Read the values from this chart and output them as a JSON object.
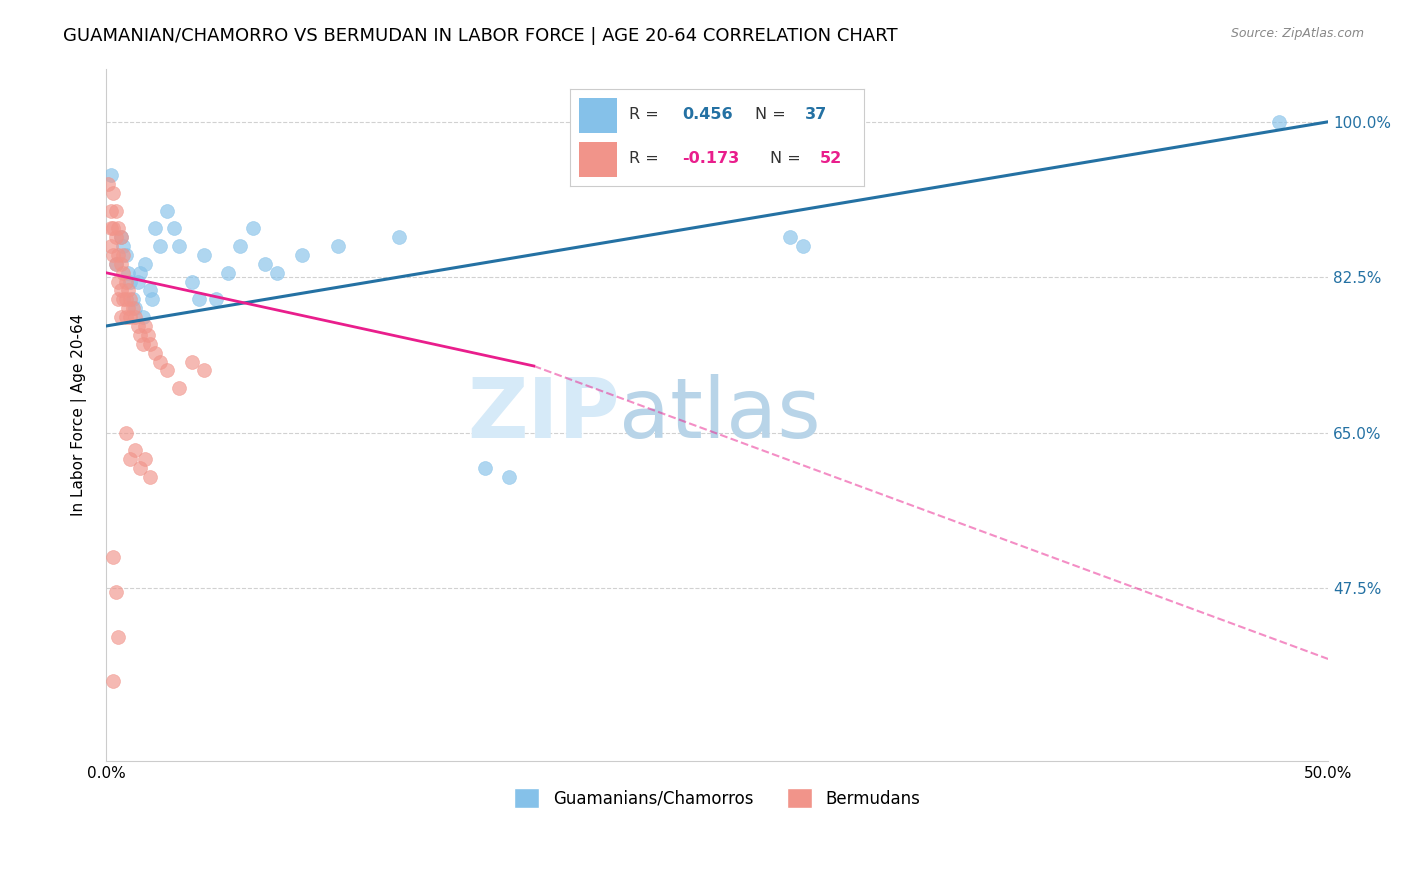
{
  "title": "GUAMANIAN/CHAMORRO VS BERMUDAN IN LABOR FORCE | AGE 20-64 CORRELATION CHART",
  "source": "Source: ZipAtlas.com",
  "ylabel": "In Labor Force | Age 20-64",
  "xlim": [
    0.0,
    0.5
  ],
  "ylim": [
    0.28,
    1.06
  ],
  "xticks": [
    0.0,
    0.1,
    0.2,
    0.3,
    0.4,
    0.5
  ],
  "xticklabels": [
    "0.0%",
    "",
    "",
    "",
    "",
    "50.0%"
  ],
  "yticks_right": [
    1.0,
    0.825,
    0.65,
    0.475
  ],
  "yticks_right_labels": [
    "100.0%",
    "82.5%",
    "65.0%",
    "47.5%"
  ],
  "blue_color": "#85c1e9",
  "pink_color": "#f1948a",
  "blue_line_color": "#2471a3",
  "pink_line_color": "#e91e8c",
  "watermark_zip": "ZIP",
  "watermark_atlas": "atlas",
  "grid_color": "#cccccc",
  "bg_color": "#ffffff",
  "title_fontsize": 13,
  "axis_label_fontsize": 11,
  "tick_fontsize": 11,
  "watermark_color": "#d6eaf8",
  "blue_scatter_x": [
    0.002,
    0.004,
    0.006,
    0.007,
    0.008,
    0.009,
    0.01,
    0.011,
    0.012,
    0.013,
    0.014,
    0.015,
    0.016,
    0.018,
    0.019,
    0.02,
    0.022,
    0.025,
    0.028,
    0.03,
    0.035,
    0.038,
    0.04,
    0.045,
    0.05,
    0.055,
    0.06,
    0.065,
    0.07,
    0.08,
    0.095,
    0.12,
    0.155,
    0.165,
    0.28,
    0.285,
    0.48
  ],
  "blue_scatter_y": [
    0.94,
    0.84,
    0.87,
    0.86,
    0.85,
    0.83,
    0.82,
    0.8,
    0.79,
    0.82,
    0.83,
    0.78,
    0.84,
    0.81,
    0.8,
    0.88,
    0.86,
    0.9,
    0.88,
    0.86,
    0.82,
    0.8,
    0.85,
    0.8,
    0.83,
    0.86,
    0.88,
    0.84,
    0.83,
    0.85,
    0.86,
    0.87,
    0.61,
    0.6,
    0.87,
    0.86,
    1.0
  ],
  "pink_scatter_x": [
    0.001,
    0.002,
    0.002,
    0.002,
    0.003,
    0.003,
    0.003,
    0.004,
    0.004,
    0.004,
    0.005,
    0.005,
    0.005,
    0.005,
    0.006,
    0.006,
    0.006,
    0.006,
    0.007,
    0.007,
    0.007,
    0.008,
    0.008,
    0.008,
    0.009,
    0.009,
    0.01,
    0.01,
    0.011,
    0.012,
    0.013,
    0.014,
    0.015,
    0.016,
    0.017,
    0.018,
    0.02,
    0.022,
    0.025,
    0.03,
    0.035,
    0.04,
    0.008,
    0.01,
    0.012,
    0.014,
    0.016,
    0.018,
    0.003,
    0.004,
    0.005,
    0.003
  ],
  "pink_scatter_y": [
    0.93,
    0.9,
    0.88,
    0.86,
    0.92,
    0.88,
    0.85,
    0.9,
    0.87,
    0.84,
    0.88,
    0.85,
    0.82,
    0.8,
    0.87,
    0.84,
    0.81,
    0.78,
    0.85,
    0.83,
    0.8,
    0.82,
    0.8,
    0.78,
    0.81,
    0.79,
    0.8,
    0.78,
    0.79,
    0.78,
    0.77,
    0.76,
    0.75,
    0.77,
    0.76,
    0.75,
    0.74,
    0.73,
    0.72,
    0.7,
    0.73,
    0.72,
    0.65,
    0.62,
    0.63,
    0.61,
    0.62,
    0.6,
    0.51,
    0.47,
    0.42,
    0.37
  ],
  "blue_line_x": [
    0.0,
    0.5
  ],
  "blue_line_y": [
    0.77,
    1.0
  ],
  "pink_solid_line_x": [
    0.0,
    0.175
  ],
  "pink_solid_line_y": [
    0.83,
    0.725
  ],
  "pink_dashed_line_x": [
    0.175,
    0.5
  ],
  "pink_dashed_line_y": [
    0.725,
    0.395
  ]
}
